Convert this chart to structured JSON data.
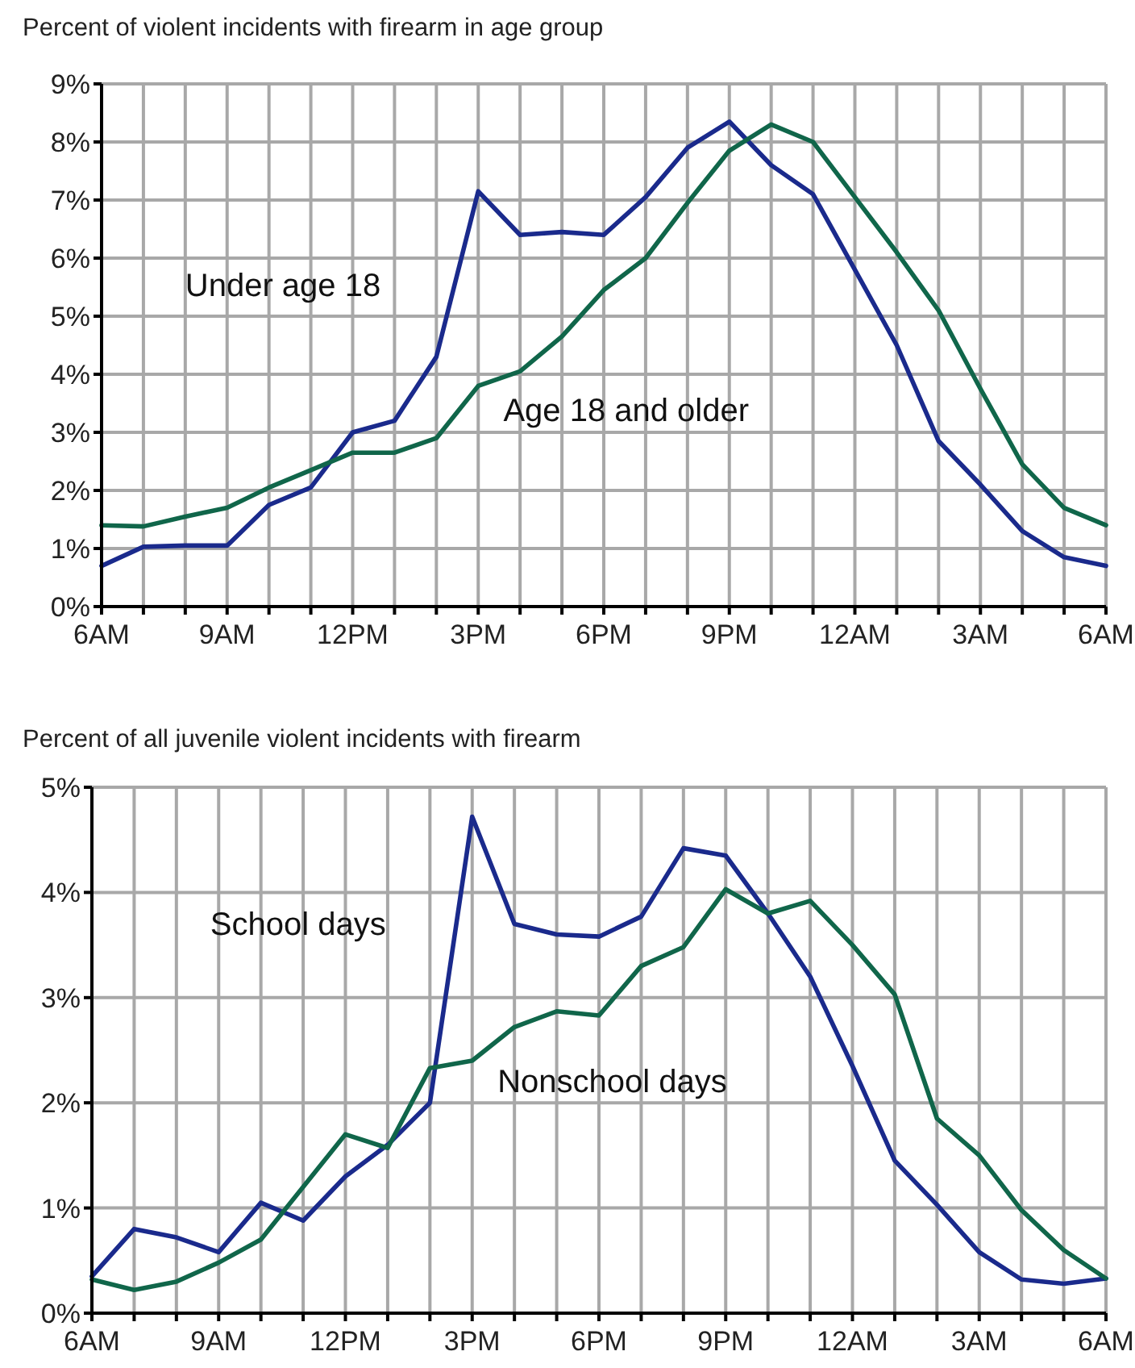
{
  "chart_data": [
    {
      "type": "line",
      "title": "Percent of violent incidents with firearm in age group",
      "categories": [
        "6AM",
        null,
        null,
        "9AM",
        null,
        null,
        "12PM",
        null,
        null,
        "3PM",
        null,
        null,
        "6PM",
        null,
        null,
        "9PM",
        null,
        null,
        "12AM",
        null,
        null,
        "3AM",
        null,
        null,
        "6AM"
      ],
      "series": [
        {
          "name": "Under age 18",
          "color": "#1a2a8c",
          "values": [
            0.7,
            1.03,
            1.05,
            1.05,
            1.75,
            2.05,
            3.0,
            3.2,
            4.3,
            7.15,
            6.4,
            6.45,
            6.4,
            7.05,
            7.9,
            8.35,
            7.6,
            7.1,
            5.8,
            4.5,
            2.85,
            2.1,
            1.3,
            0.85,
            0.7
          ]
        },
        {
          "name": "Age 18 and older",
          "color": "#10664a",
          "values": [
            1.4,
            1.38,
            1.55,
            1.7,
            2.05,
            2.35,
            2.65,
            2.65,
            2.9,
            3.8,
            4.05,
            4.65,
            5.45,
            6.0,
            6.95,
            7.85,
            8.3,
            8.0,
            7.05,
            6.1,
            5.1,
            3.75,
            2.45,
            1.7,
            1.4
          ]
        }
      ],
      "ylim": [
        0,
        9
      ],
      "yticks": [
        {
          "value": 0,
          "label": "0%"
        },
        {
          "value": 1,
          "label": "1%"
        },
        {
          "value": 2,
          "label": "2%"
        },
        {
          "value": 3,
          "label": "3%"
        },
        {
          "value": 4,
          "label": "4%"
        },
        {
          "value": 5,
          "label": "5%"
        },
        {
          "value": 6,
          "label": "6%"
        },
        {
          "value": 7,
          "label": "7%"
        },
        {
          "value": 8,
          "label": "8%"
        },
        {
          "value": 9,
          "label": "9%"
        }
      ],
      "grid": true,
      "marker": "none",
      "line_style": "solid"
    },
    {
      "type": "line",
      "title": "Percent of all juvenile violent incidents with firearm",
      "categories": [
        "6AM",
        null,
        null,
        "9AM",
        null,
        null,
        "12PM",
        null,
        null,
        "3PM",
        null,
        null,
        "6PM",
        null,
        null,
        "9PM",
        null,
        null,
        "12AM",
        null,
        null,
        "3AM",
        null,
        null,
        "6AM"
      ],
      "series": [
        {
          "name": "School days",
          "color": "#1a2a8c",
          "values": [
            0.35,
            0.8,
            0.72,
            0.58,
            1.05,
            0.88,
            1.3,
            1.6,
            2.0,
            4.72,
            3.7,
            3.6,
            3.58,
            3.77,
            4.42,
            4.35,
            3.8,
            3.2,
            2.35,
            1.45,
            1.03,
            0.58,
            0.32,
            0.28,
            0.33
          ]
        },
        {
          "name": "Nonschool days",
          "color": "#10664a",
          "values": [
            0.32,
            0.22,
            0.3,
            0.48,
            0.7,
            1.2,
            1.7,
            1.57,
            2.33,
            2.4,
            2.72,
            2.87,
            2.83,
            3.3,
            3.48,
            4.03,
            3.8,
            3.92,
            3.5,
            3.03,
            1.85,
            1.5,
            0.98,
            0.6,
            0.33
          ]
        }
      ],
      "ylim": [
        0,
        5
      ],
      "yticks": [
        {
          "value": 0,
          "label": "0%"
        },
        {
          "value": 1,
          "label": "1%"
        },
        {
          "value": 2,
          "label": "2%"
        },
        {
          "value": 3,
          "label": "3%"
        },
        {
          "value": 4,
          "label": "4%"
        },
        {
          "value": 5,
          "label": "5%"
        }
      ],
      "grid": true,
      "marker": "none",
      "line_style": "solid"
    }
  ]
}
